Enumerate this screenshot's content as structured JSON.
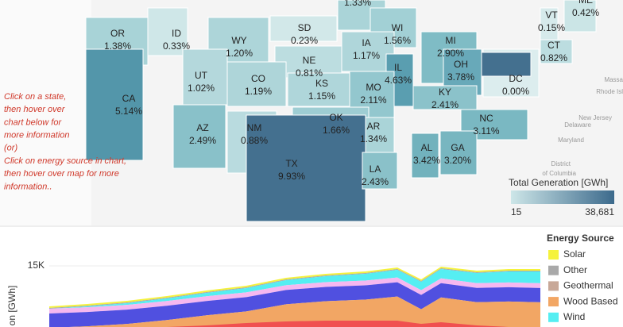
{
  "map": {
    "states": [
      {
        "abbr": "OR",
        "share": "1.38%",
        "color": "#a8d3d7"
      },
      {
        "abbr": "ID",
        "share": "0.33%",
        "color": "#cfe7e8"
      },
      {
        "abbr": "WY",
        "share": "1.20%",
        "color": "#add5d9"
      },
      {
        "abbr": "SD",
        "share": "0.23%",
        "color": "#d2e8e9"
      },
      {
        "share": "1.33%",
        "color": "#aad4d8"
      },
      {
        "abbr": "WI",
        "share": "1.56%",
        "color": "#a2d0d5"
      },
      {
        "abbr": "MI",
        "share": "2.90%",
        "color": "#7fbcc5"
      },
      {
        "abbr": "VT",
        "share": "0.15%",
        "color": "#d6eaeb"
      },
      {
        "abbr": "ME",
        "share": "0.42%",
        "color": "#cbe5e6"
      },
      {
        "abbr": "CT",
        "share": "0.82%",
        "color": "#bcdde0"
      },
      {
        "abbr": "NE",
        "share": "0.81%",
        "color": "#bcdde0"
      },
      {
        "abbr": "IA",
        "share": "1.17%",
        "color": "#afd6da"
      },
      {
        "abbr": "UT",
        "share": "1.02%",
        "color": "#b4d8dc"
      },
      {
        "abbr": "CO",
        "share": "1.19%",
        "color": "#aed5d9"
      },
      {
        "abbr": "KS",
        "share": "1.15%",
        "color": "#afd6da"
      },
      {
        "abbr": "IL",
        "share": "4.63%",
        "color": "#5a9eb0"
      },
      {
        "abbr": "OH",
        "share": "3.78%",
        "color": "#68a9b9"
      },
      {
        "abbr": "MO",
        "share": "2.11%",
        "color": "#93c7ce"
      },
      {
        "abbr": "DC",
        "share": "0.00%",
        "color": "#dcedee"
      },
      {
        "abbr": "KY",
        "share": "2.41%",
        "color": "#8bc2ca"
      },
      {
        "abbr": "CA",
        "share": "5.14%",
        "color": "#5396aa"
      },
      {
        "abbr": "AZ",
        "share": "2.49%",
        "color": "#89c1c9"
      },
      {
        "abbr": "NM",
        "share": "0.88%",
        "color": "#b9dbdf"
      },
      {
        "abbr": "OK",
        "share": "1.66%",
        "color": "#9ecdd3"
      },
      {
        "abbr": "AR",
        "share": "1.34%",
        "color": "#aad4d8"
      },
      {
        "abbr": "NC",
        "share": "3.11%",
        "color": "#7ab8c2"
      },
      {
        "abbr": "TX",
        "share": "9.93%",
        "color": "#44708f"
      },
      {
        "abbr": "AL",
        "share": "3.42%",
        "color": "#72b2bd"
      },
      {
        "abbr": "GA",
        "share": "3.20%",
        "color": "#78b6c0"
      },
      {
        "abbr": "LA",
        "share": "2.43%",
        "color": "#8ac1c9"
      }
    ],
    "place_labels": [
      "Massa",
      "Rhode Isl",
      "New Jersey",
      "Delaware",
      "Maryland",
      "District",
      "of Columbia"
    ],
    "legend": {
      "title": "Total Generation [GWh]",
      "min": "15",
      "max": "38,681"
    }
  },
  "instructions": [
    "Click on a state,",
    "then hover over",
    "chart below for",
    "more information",
    "(or)",
    "Click on energy source in chart,",
    "then hover over map for more",
    "information.."
  ],
  "chart": {
    "ytick": "15K",
    "axis_label": "on [GWh]",
    "legend": {
      "title": "Energy Source",
      "items": [
        {
          "name": "Solar",
          "color": "#f5f23c"
        },
        {
          "name": "Other",
          "color": "#a9a9a9"
        },
        {
          "name": "Geothermal",
          "color": "#c8a898"
        },
        {
          "name": "Wood Based",
          "color": "#f2a664"
        },
        {
          "name": "Wind",
          "color": "#55eef2"
        }
      ]
    }
  }
}
